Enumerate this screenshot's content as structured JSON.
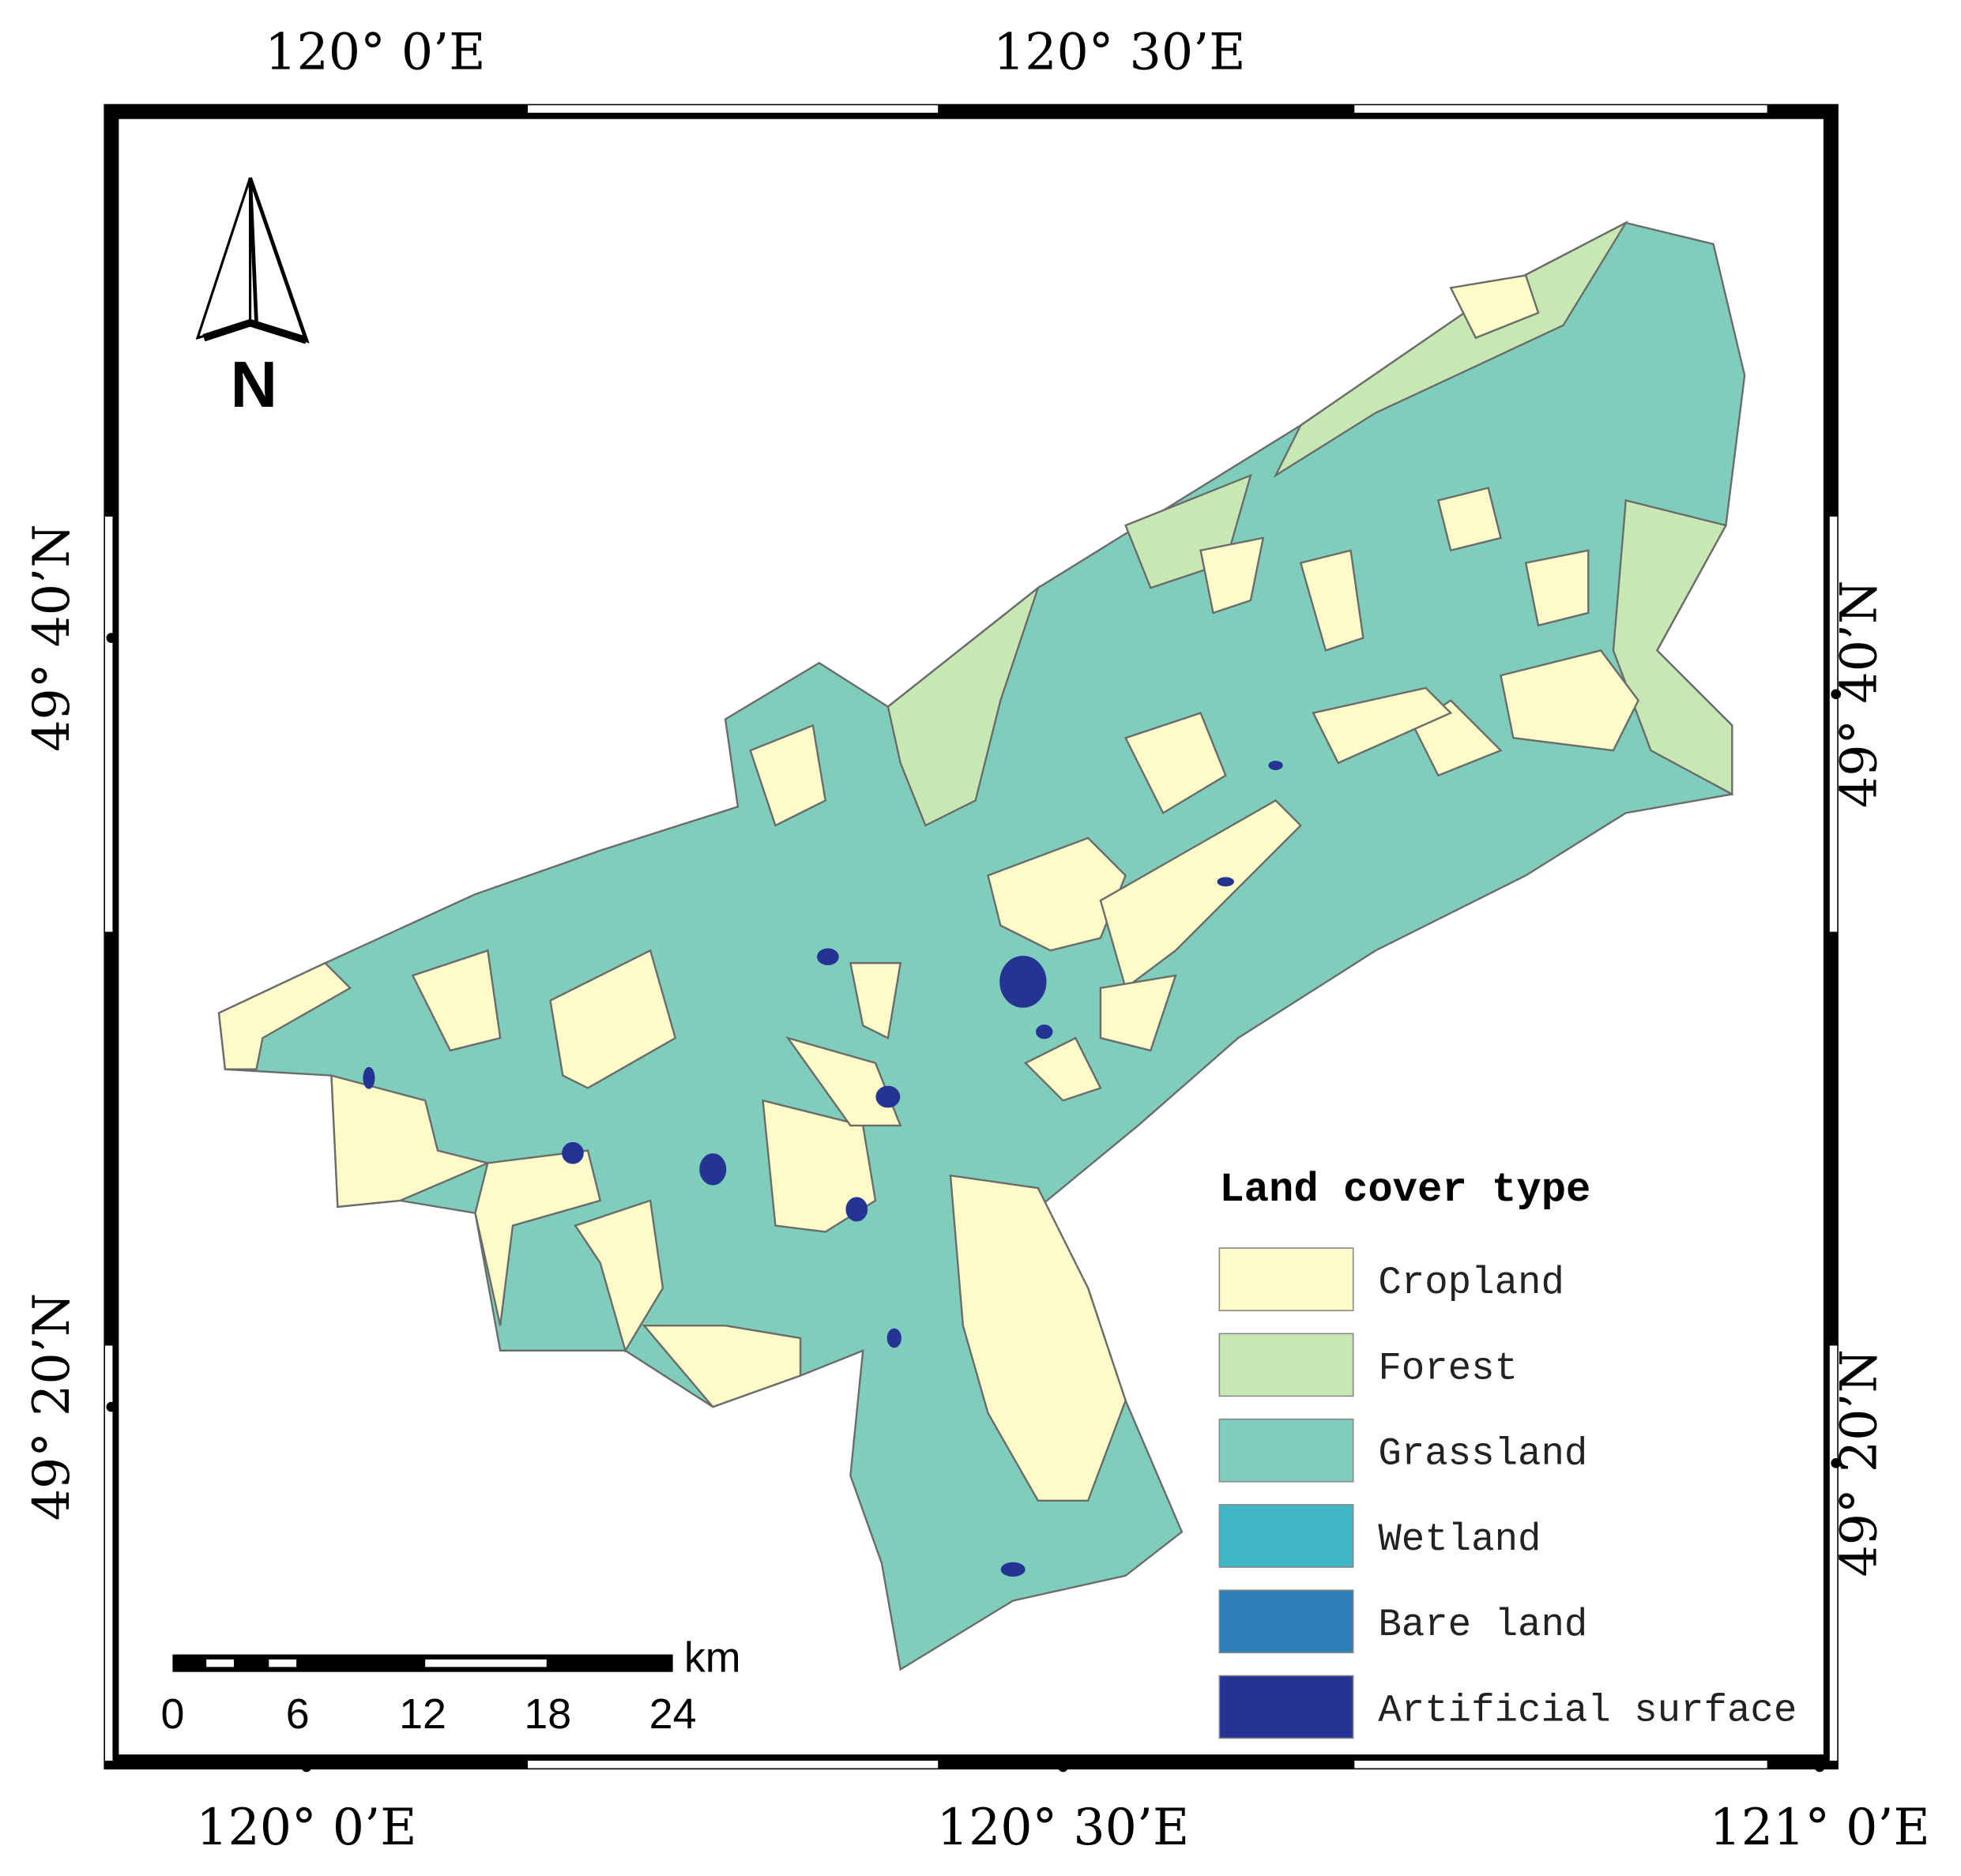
{
  "map": {
    "top_labels": [
      "120° 0’E",
      "120° 30’E"
    ],
    "bottom_labels": [
      "120° 0’E",
      "120° 30’E",
      "121° 0’E"
    ],
    "left_labels": [
      "49° 40’N",
      "49° 20’N"
    ],
    "right_labels": [
      "49° 40’N",
      "49° 20’N"
    ],
    "north": "N",
    "scale_bar": {
      "unit": "km",
      "labels": [
        0,
        6,
        12,
        18,
        24
      ]
    },
    "legend": {
      "title": "Land cover type",
      "items": [
        {
          "label": "Cropland",
          "color": "#fdfbc8"
        },
        {
          "label": "Forest",
          "color": "#c7e8b3"
        },
        {
          "label": "Grassland",
          "color": "#7fcdbb"
        },
        {
          "label": "Wetland",
          "color": "#41b6c4"
        },
        {
          "label": "Bare land",
          "color": "#2c7fb8"
        },
        {
          "label": "Artificial surface",
          "color": "#253494"
        }
      ]
    }
  }
}
